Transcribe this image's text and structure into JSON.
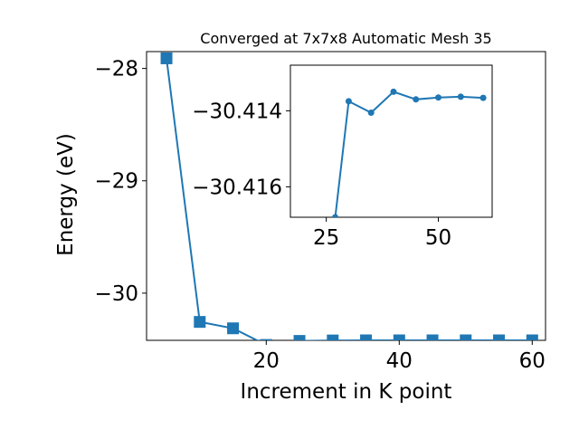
{
  "chart_data": [
    {
      "type": "line",
      "title": "Converged at 7x7x8 Automatic Mesh 35",
      "xlabel": "Increment in K point",
      "ylabel": "Energy (eV)",
      "xlim": [
        2,
        62
      ],
      "ylim": [
        -30.42,
        -27.85
      ],
      "x_ticks": [
        {
          "value": 20,
          "label": "20"
        },
        {
          "value": 40,
          "label": "40"
        },
        {
          "value": 60,
          "label": "60"
        }
      ],
      "y_ticks": [
        {
          "value": -28,
          "label": "−28"
        },
        {
          "value": -29,
          "label": "−29"
        },
        {
          "value": -30,
          "label": "−30"
        }
      ],
      "grid": false,
      "marker": "square",
      "color": "#1f77b4",
      "series": [
        {
          "x": [
            5,
            10,
            15,
            20,
            25,
            30,
            35,
            40,
            45,
            50,
            55,
            60
          ],
          "y": [
            -27.91,
            -30.256,
            -30.313,
            -30.461,
            -30.425,
            -30.421,
            -30.42,
            -30.42,
            -30.42,
            -30.42,
            -30.42,
            -30.42
          ]
        }
      ]
    },
    {
      "type": "line",
      "title": "",
      "xlabel": "",
      "ylabel": "",
      "xlim": [
        17,
        62
      ],
      "ylim": [
        -30.4168,
        -30.4128
      ],
      "x_ticks": [
        {
          "value": 25,
          "label": "25"
        },
        {
          "value": 50,
          "label": "50"
        }
      ],
      "y_ticks": [
        {
          "value": -30.416,
          "label": "−30.416"
        },
        {
          "value": -30.414,
          "label": "−30.414"
        }
      ],
      "grid": false,
      "marker": "circle",
      "color": "#1f77b4",
      "series": [
        {
          "x": [
            27,
            30,
            35,
            40,
            45,
            50,
            55,
            60
          ],
          "y": [
            -30.4168,
            -30.41375,
            -30.41405,
            -30.4135,
            -30.4137,
            -30.41365,
            -30.41363,
            -30.41366
          ]
        }
      ]
    }
  ]
}
